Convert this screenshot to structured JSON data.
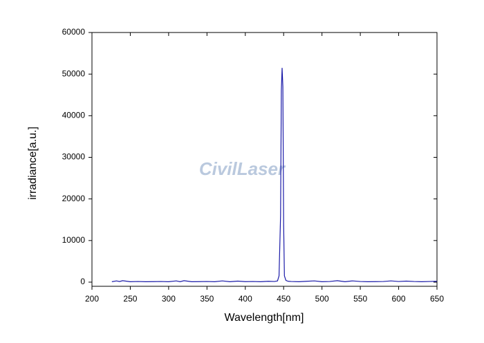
{
  "chart_data": {
    "type": "line",
    "xlabel": "Wavelength[nm]",
    "ylabel": "irradiance[a.u.]",
    "watermark": "CivilLaser",
    "x": [
      226,
      232,
      236,
      240,
      250,
      260,
      270,
      280,
      290,
      300,
      310,
      315,
      320,
      330,
      340,
      350,
      360,
      370,
      380,
      390,
      400,
      410,
      420,
      430,
      438,
      442,
      444,
      446,
      447,
      448,
      449,
      450,
      451,
      453,
      456,
      460,
      470,
      480,
      490,
      500,
      510,
      520,
      530,
      540,
      550,
      560,
      570,
      580,
      590,
      600,
      610,
      620,
      630,
      640,
      650
    ],
    "values": [
      100,
      300,
      150,
      350,
      100,
      150,
      100,
      120,
      150,
      100,
      300,
      100,
      350,
      100,
      120,
      150,
      100,
      300,
      100,
      250,
      120,
      150,
      100,
      200,
      150,
      300,
      1500,
      16000,
      46000,
      51500,
      47000,
      14000,
      1500,
      400,
      200,
      150,
      100,
      200,
      300,
      100,
      150,
      350,
      100,
      300,
      150,
      100,
      120,
      150,
      300,
      150,
      250,
      150,
      100,
      150,
      200
    ],
    "color": "#1a1aa8",
    "xlim": [
      200,
      650
    ],
    "xticks": [
      200,
      250,
      300,
      350,
      400,
      450,
      500,
      550,
      600,
      650
    ],
    "ylim": [
      -1000,
      60000
    ],
    "yticks": [
      0,
      10000,
      20000,
      30000,
      40000,
      50000,
      60000
    ]
  }
}
